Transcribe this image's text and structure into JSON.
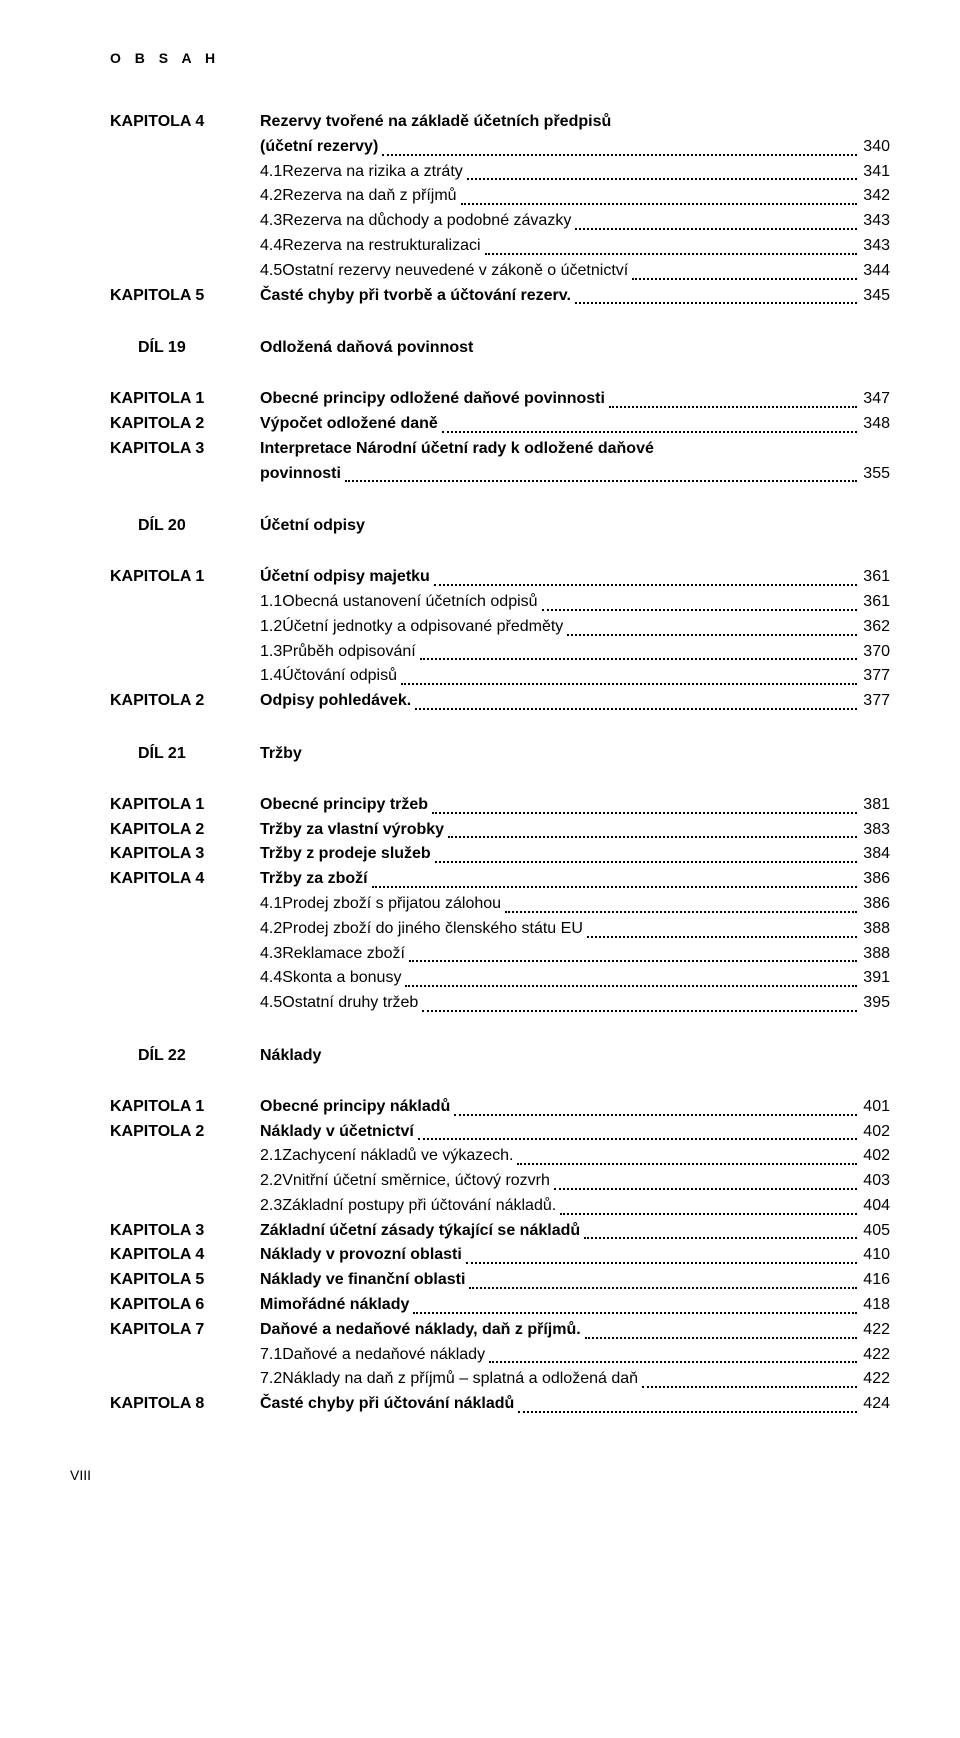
{
  "header": "O B S A H",
  "footer": "VIII",
  "sections": [
    {
      "rows": [
        {
          "label": "KAPITOLA 4",
          "bold": true,
          "multiline": true,
          "line1": "Rezervy tvořené na základě účetních předpisů",
          "line2": "(účetní rezervy)",
          "page": "340"
        },
        {
          "label": "",
          "sub": true,
          "num": "4.1",
          "text": "Rezerva na rizika a ztráty",
          "page": "341"
        },
        {
          "label": "",
          "sub": true,
          "num": "4.2",
          "text": "Rezerva na daň z příjmů",
          "page": "342"
        },
        {
          "label": "",
          "sub": true,
          "num": "4.3",
          "text": "Rezerva na důchody a podobné závazky",
          "page": "343"
        },
        {
          "label": "",
          "sub": true,
          "num": "4.4",
          "text": "Rezerva na restrukturalizaci",
          "page": "343"
        },
        {
          "label": "",
          "sub": true,
          "num": "4.5",
          "text": "Ostatní rezervy neuvedené v zákoně o účetnictví",
          "page": "344"
        },
        {
          "label": "KAPITOLA 5",
          "bold": true,
          "text": "Časté chyby při tvorbě a účtování rezerv.",
          "page": "345"
        }
      ]
    },
    {
      "dil": {
        "label": "DÍL 19",
        "title": "Odložená daňová povinnost"
      },
      "rows": [
        {
          "label": "KAPITOLA 1",
          "bold": true,
          "text": "Obecné principy odložené daňové povinnosti",
          "page": "347"
        },
        {
          "label": "KAPITOLA 2",
          "bold": true,
          "text": "Výpočet odložené daně",
          "page": "348"
        },
        {
          "label": "KAPITOLA 3",
          "bold": true,
          "multiline": true,
          "line1": "Interpretace Národní účetní rady k odložené daňové",
          "line2": "povinnosti",
          "page": "355"
        }
      ]
    },
    {
      "dil": {
        "label": "DÍL 20",
        "title": "Účetní odpisy"
      },
      "rows": [
        {
          "label": "KAPITOLA 1",
          "bold": true,
          "text": "Účetní odpisy majetku",
          "page": "361"
        },
        {
          "label": "",
          "sub": true,
          "num": "1.1",
          "text": "Obecná ustanovení účetních odpisů",
          "page": "361"
        },
        {
          "label": "",
          "sub": true,
          "num": "1.2",
          "text": "Účetní jednotky a odpisované předměty",
          "page": "362"
        },
        {
          "label": "",
          "sub": true,
          "num": "1.3",
          "text": "Průběh odpisování",
          "page": "370"
        },
        {
          "label": "",
          "sub": true,
          "num": "1.4",
          "text": "Účtování odpisů",
          "page": "377"
        },
        {
          "label": "KAPITOLA 2",
          "bold": true,
          "text": "Odpisy pohledávek.",
          "page": "377"
        }
      ]
    },
    {
      "dil": {
        "label": "DÍL 21",
        "title": "Tržby"
      },
      "rows": [
        {
          "label": "KAPITOLA 1",
          "bold": true,
          "text": "Obecné principy tržeb",
          "page": "381"
        },
        {
          "label": "KAPITOLA 2",
          "bold": true,
          "text": "Tržby za vlastní výrobky",
          "page": "383"
        },
        {
          "label": "KAPITOLA 3",
          "bold": true,
          "text": "Tržby z prodeje služeb",
          "page": "384"
        },
        {
          "label": "KAPITOLA 4",
          "bold": true,
          "text": "Tržby za zboží",
          "page": "386"
        },
        {
          "label": "",
          "sub": true,
          "num": "4.1",
          "text": "Prodej zboží s přijatou zálohou",
          "page": "386"
        },
        {
          "label": "",
          "sub": true,
          "num": "4.2",
          "text": "Prodej zboží do jiného členského státu EU",
          "page": "388"
        },
        {
          "label": "",
          "sub": true,
          "num": "4.3",
          "text": "Reklamace zboží",
          "page": "388"
        },
        {
          "label": "",
          "sub": true,
          "num": "4.4",
          "text": "Skonta a bonusy",
          "page": "391"
        },
        {
          "label": "",
          "sub": true,
          "num": "4.5",
          "text": "Ostatní druhy tržeb",
          "page": "395"
        }
      ]
    },
    {
      "dil": {
        "label": "DÍL 22",
        "title": "Náklady"
      },
      "rows": [
        {
          "label": "KAPITOLA 1",
          "bold": true,
          "text": "Obecné principy nákladů",
          "page": "401"
        },
        {
          "label": "KAPITOLA 2",
          "bold": true,
          "text": "Náklady v účetnictví",
          "page": "402"
        },
        {
          "label": "",
          "sub": true,
          "num": "2.1",
          "text": "Zachycení nákladů ve výkazech.",
          "page": "402"
        },
        {
          "label": "",
          "sub": true,
          "num": "2.2",
          "text": "Vnitřní účetní směrnice, účtový rozvrh",
          "page": "403"
        },
        {
          "label": "",
          "sub": true,
          "num": "2.3",
          "text": "Základní postupy při účtování nákladů.",
          "page": "404"
        },
        {
          "label": "KAPITOLA 3",
          "bold": true,
          "text": "Základní účetní zásady týkající se nákladů",
          "page": "405"
        },
        {
          "label": "KAPITOLA 4",
          "bold": true,
          "text": "Náklady v provozní oblasti",
          "page": "410"
        },
        {
          "label": "KAPITOLA 5",
          "bold": true,
          "text": "Náklady ve finanční oblasti",
          "page": "416"
        },
        {
          "label": "KAPITOLA 6",
          "bold": true,
          "text": "Mimořádné náklady",
          "page": "418"
        },
        {
          "label": "KAPITOLA 7",
          "bold": true,
          "text": "Daňové a nedaňové náklady, daň z příjmů.",
          "page": "422"
        },
        {
          "label": "",
          "sub": true,
          "num": "7.1",
          "text": "Daňové a nedaňové náklady",
          "page": "422"
        },
        {
          "label": "",
          "sub": true,
          "num": "7.2",
          "text": "Náklady na daň z příjmů – splatná a odložená daň",
          "page": "422"
        },
        {
          "label": "KAPITOLA 8",
          "bold": true,
          "text": "Časté chyby při účtování nákladů",
          "page": "424"
        }
      ]
    }
  ]
}
